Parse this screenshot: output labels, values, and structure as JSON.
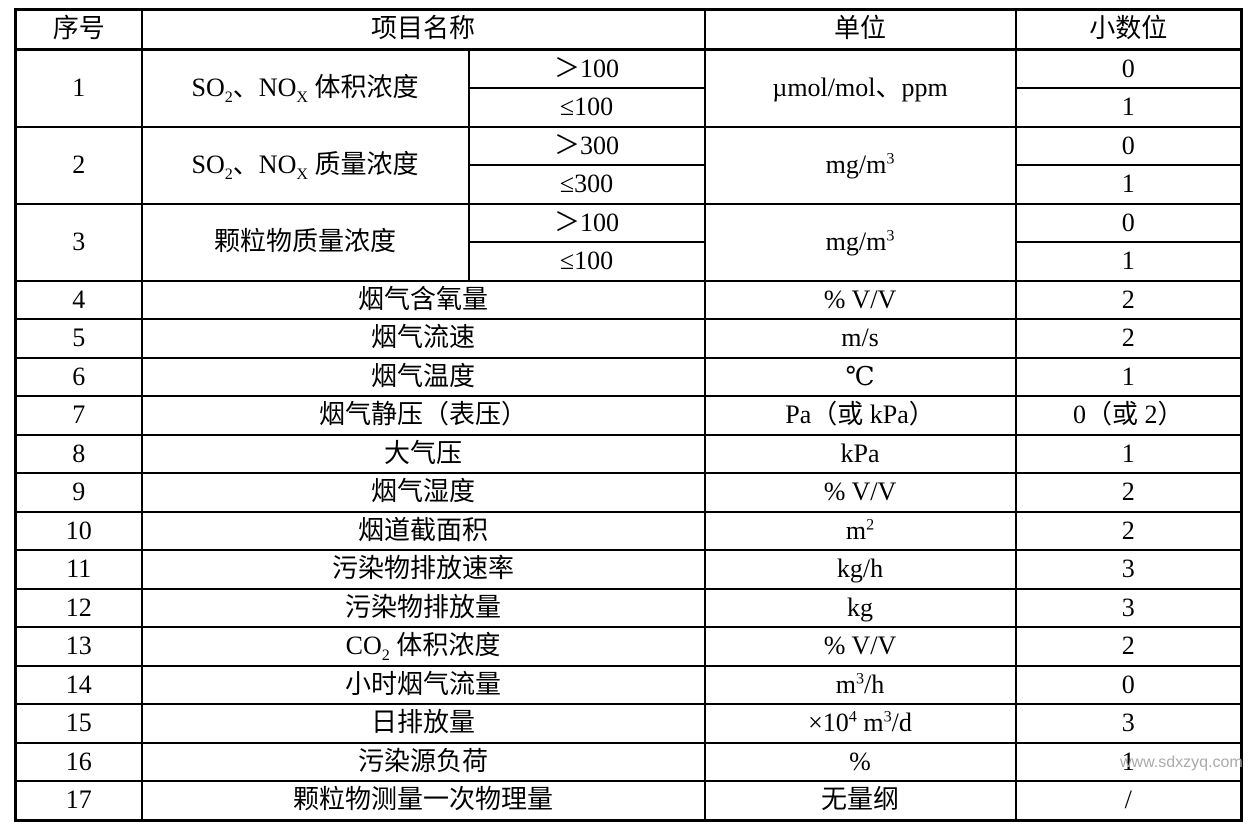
{
  "table": {
    "headers": {
      "no": "序号",
      "name": "项目名称",
      "unit": "单位",
      "decimals": "小数位"
    },
    "groups": [
      {
        "no": "1",
        "name_html": "SO<sub>2</sub>、NO<sub>X</sub> 体积浓度",
        "conditions": [
          "＞100",
          "≤100"
        ],
        "unit_html": "µmol/mol、ppm",
        "decimals": [
          "0",
          "1"
        ]
      },
      {
        "no": "2",
        "name_html": "SO<sub>2</sub>、NO<sub>X</sub> 质量浓度",
        "conditions": [
          "＞300",
          "≤300"
        ],
        "unit_html": "mg/m<sup>3</sup>",
        "decimals": [
          "0",
          "1"
        ]
      },
      {
        "no": "3",
        "name_html": "颗粒物质量浓度",
        "conditions": [
          "＞100",
          "≤100"
        ],
        "unit_html": "mg/m<sup>3</sup>",
        "decimals": [
          "0",
          "1"
        ]
      }
    ],
    "rows": [
      {
        "no": "4",
        "name_html": "烟气含氧量",
        "unit_html": "% V/V",
        "decimals": "2"
      },
      {
        "no": "5",
        "name_html": "烟气流速",
        "unit_html": "m/s",
        "decimals": "2"
      },
      {
        "no": "6",
        "name_html": "烟气温度",
        "unit_html": "℃",
        "decimals": "1"
      },
      {
        "no": "7",
        "name_html": "烟气静压（表压）",
        "unit_html": "Pa（或 kPa）",
        "decimals": "0（或 2）"
      },
      {
        "no": "8",
        "name_html": "大气压",
        "unit_html": "kPa",
        "decimals": "1"
      },
      {
        "no": "9",
        "name_html": "烟气湿度",
        "unit_html": "% V/V",
        "decimals": "2"
      },
      {
        "no": "10",
        "name_html": "烟道截面积",
        "unit_html": "m<sup>2</sup>",
        "decimals": "2"
      },
      {
        "no": "11",
        "name_html": "污染物排放速率",
        "unit_html": "kg/h",
        "decimals": "3"
      },
      {
        "no": "12",
        "name_html": "污染物排放量",
        "unit_html": "kg",
        "decimals": "3"
      },
      {
        "no": "13",
        "name_html": "CO<sub>2</sub> 体积浓度",
        "unit_html": "% V/V",
        "decimals": "2"
      },
      {
        "no": "14",
        "name_html": "小时烟气流量",
        "unit_html": "m<sup>3</sup>/h",
        "decimals": "0"
      },
      {
        "no": "15",
        "name_html": "日排放量",
        "unit_html": "×10<sup>4</sup> m<sup>3</sup>/d",
        "decimals": "3"
      },
      {
        "no": "16",
        "name_html": "污染源负荷",
        "unit_html": "%",
        "decimals": "1"
      },
      {
        "no": "17",
        "name_html": "颗粒物测量一次物理量",
        "unit_html": "无量纲",
        "decimals": "/"
      }
    ]
  },
  "watermark": "www.sdxzyq.com"
}
